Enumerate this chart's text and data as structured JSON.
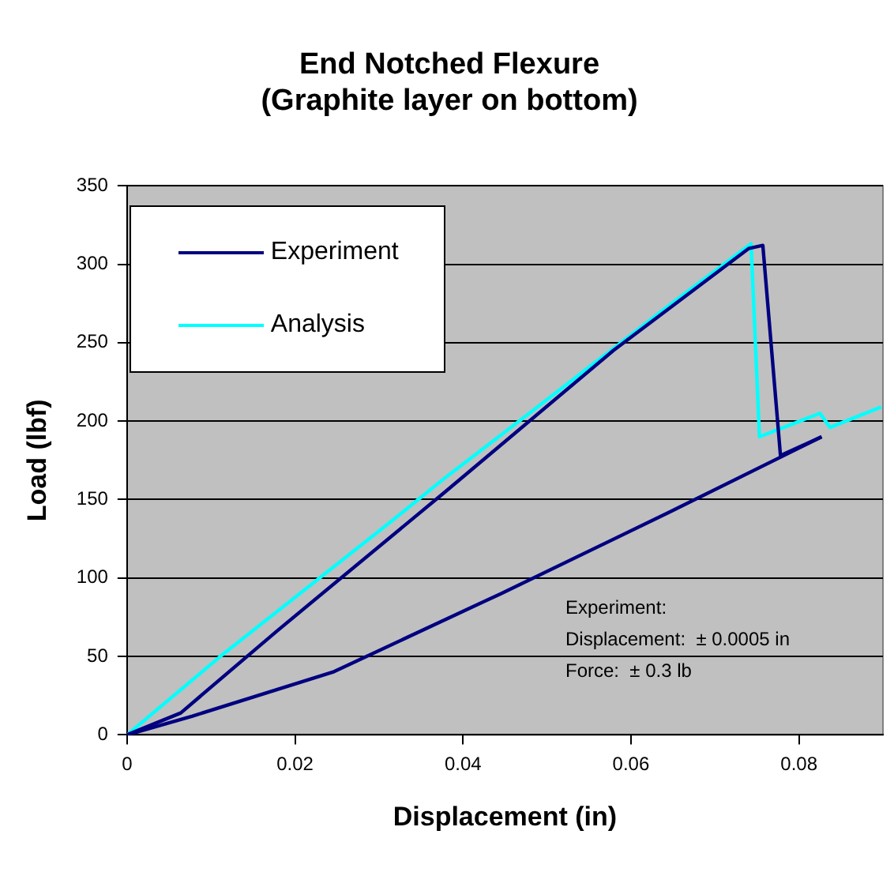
{
  "chart_data": {
    "type": "line",
    "title": "End Notched Flexure",
    "subtitle": "(Graphite layer on bottom)",
    "xlabel": "Displacement (in)",
    "ylabel": "Load (lbf)",
    "xlim": [
      0,
      0.09
    ],
    "xticks": [
      0,
      0.02,
      0.04,
      0.06,
      0.08
    ],
    "ylim": [
      0,
      350
    ],
    "yticks": [
      0,
      50,
      100,
      150,
      200,
      250,
      300,
      350
    ],
    "grid": "y",
    "legend": "top left",
    "marker": "none",
    "line_style": "solid",
    "annotations": [
      "Experiment:\nDisplacement:  ± 0.0005 in\nForce:  ± 0.3 lb"
    ],
    "series": [
      {
        "name": "Experiment",
        "color": "#000080",
        "x": [
          0,
          0.0064,
          0.0178,
          0.0379,
          0.0579,
          0.074,
          0.0757,
          0.0778,
          0.0827
        ],
        "values": [
          0,
          14,
          66,
          155,
          245,
          310,
          312,
          178,
          190
        ]
      },
      {
        "color": "#000080",
        "x": [
          0,
          0.0078,
          0.0245,
          0.0445,
          0.0646,
          0.0827
        ],
        "values": [
          0,
          12,
          40,
          90,
          142,
          190
        ]
      },
      {
        "name": "Analysis",
        "color": "#00ffff",
        "x": [
          0,
          0.0111,
          0.0312,
          0.0379,
          0.0479,
          0.0646,
          0.0743,
          0.0753,
          0.0825,
          0.0837,
          0.0898
        ],
        "values": [
          0,
          50,
          135,
          164,
          205,
          274,
          313,
          190,
          205,
          196,
          209
        ]
      }
    ]
  }
}
